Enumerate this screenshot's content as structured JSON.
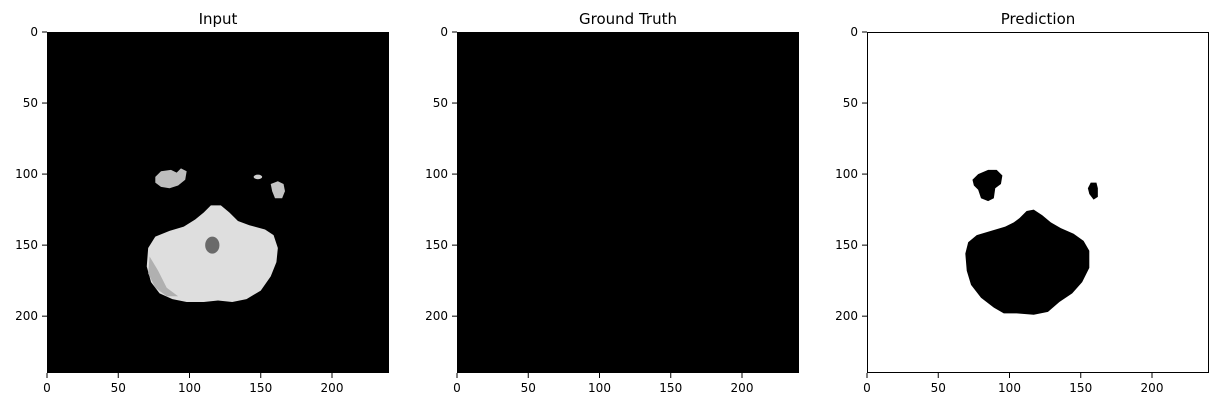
{
  "chart_data": [
    {
      "type": "heatmap",
      "title": "Input",
      "colormap": "gray",
      "background": "#000000",
      "xlim": [
        0,
        240
      ],
      "ylim": [
        240,
        0
      ],
      "xticks": [
        0,
        50,
        100,
        150,
        200
      ],
      "yticks": [
        0,
        50,
        100,
        150,
        200
      ],
      "regions": [
        {
          "label": "blob-left",
          "shape": "polygon",
          "fill": "#bdbdbd",
          "points": [
            [
              76,
              102
            ],
            [
              80,
              98
            ],
            [
              87,
              97
            ],
            [
              91,
              99
            ],
            [
              94,
              96
            ],
            [
              98,
              98
            ],
            [
              97,
              104
            ],
            [
              92,
              108
            ],
            [
              86,
              110
            ],
            [
              80,
              109
            ],
            [
              76,
              106
            ]
          ]
        },
        {
          "label": "blob-right-small",
          "shape": "ellipse",
          "fill": "#cfcfcf",
          "cx": 148,
          "cy": 102,
          "rx": 3,
          "ry": 1.6
        },
        {
          "label": "blob-right",
          "shape": "polygon",
          "fill": "#c4c4c4",
          "points": [
            [
              157,
              107
            ],
            [
              162,
              105
            ],
            [
              166,
              107
            ],
            [
              167,
              112
            ],
            [
              165,
              117
            ],
            [
              160,
              117
            ],
            [
              158,
              112
            ]
          ]
        },
        {
          "label": "brain-body",
          "shape": "polygon",
          "fill": "#dedede",
          "points": [
            [
              110,
              127
            ],
            [
              115,
              122
            ],
            [
              122,
              122
            ],
            [
              128,
              127
            ],
            [
              134,
              133
            ],
            [
              142,
              136
            ],
            [
              153,
              139
            ],
            [
              159,
              143
            ],
            [
              162,
              152
            ],
            [
              161,
              162
            ],
            [
              157,
              172
            ],
            [
              150,
              182
            ],
            [
              140,
              188
            ],
            [
              130,
              190
            ],
            [
              120,
              189
            ],
            [
              110,
              190
            ],
            [
              98,
              190
            ],
            [
              88,
              188
            ],
            [
              79,
              184
            ],
            [
              73,
              176
            ],
            [
              70,
              165
            ],
            [
              71,
              152
            ],
            [
              76,
              144
            ],
            [
              86,
              140
            ],
            [
              96,
              137
            ],
            [
              104,
              132
            ]
          ]
        },
        {
          "label": "brain-shade",
          "shape": "polygon",
          "fill": "#b0b0b0",
          "points": [
            [
              72,
              158
            ],
            [
              78,
              168
            ],
            [
              84,
              180
            ],
            [
              92,
              186
            ],
            [
              84,
              186
            ],
            [
              76,
              180
            ],
            [
              71,
              170
            ]
          ]
        },
        {
          "label": "brain-hole",
          "shape": "ellipse",
          "fill": "#6a6a6a",
          "cx": 116,
          "cy": 150,
          "rx": 5,
          "ry": 6
        }
      ]
    },
    {
      "type": "heatmap",
      "title": "Ground Truth",
      "colormap": "gray",
      "background": "#000000",
      "xlim": [
        0,
        240
      ],
      "ylim": [
        240,
        0
      ],
      "xticks": [
        0,
        50,
        100,
        150,
        200
      ],
      "yticks": [
        0,
        50,
        100,
        150,
        200
      ],
      "regions": []
    },
    {
      "type": "heatmap",
      "title": "Prediction",
      "colormap": "gray",
      "background": "#ffffff",
      "xlim": [
        0,
        240
      ],
      "ylim": [
        240,
        0
      ],
      "xticks": [
        0,
        50,
        100,
        150,
        200
      ],
      "yticks": [
        0,
        50,
        100,
        150,
        200
      ],
      "regions": [
        {
          "label": "pred-blob-left",
          "shape": "polygon",
          "fill": "#000000",
          "points": [
            [
              74,
              104
            ],
            [
              78,
              100
            ],
            [
              85,
              97
            ],
            [
              91,
              97
            ],
            [
              95,
              101
            ],
            [
              94,
              107
            ],
            [
              90,
              110
            ],
            [
              89,
              117
            ],
            [
              85,
              119
            ],
            [
              80,
              117
            ],
            [
              78,
              111
            ],
            [
              75,
              108
            ]
          ]
        },
        {
          "label": "pred-blob-right",
          "shape": "polygon",
          "fill": "#000000",
          "points": [
            [
              155,
              110
            ],
            [
              157,
              106
            ],
            [
              161,
              106
            ],
            [
              162,
              110
            ],
            [
              162,
              116
            ],
            [
              159,
              118
            ],
            [
              156,
              114
            ]
          ]
        },
        {
          "label": "pred-body",
          "shape": "polygon",
          "fill": "#000000",
          "points": [
            [
              107,
              131
            ],
            [
              112,
              126
            ],
            [
              117,
              125
            ],
            [
              123,
              129
            ],
            [
              129,
              134
            ],
            [
              136,
              138
            ],
            [
              145,
              142
            ],
            [
              152,
              147
            ],
            [
              156,
              154
            ],
            [
              156,
              166
            ],
            [
              151,
              176
            ],
            [
              144,
              184
            ],
            [
              135,
              190
            ],
            [
              127,
              197
            ],
            [
              117,
              199
            ],
            [
              105,
              198
            ],
            [
              96,
              198
            ],
            [
              89,
              194
            ],
            [
              80,
              187
            ],
            [
              73,
              178
            ],
            [
              70,
              168
            ],
            [
              69,
              156
            ],
            [
              71,
              148
            ],
            [
              77,
              143
            ],
            [
              87,
              140
            ],
            [
              97,
              137
            ],
            [
              103,
              134
            ]
          ]
        }
      ]
    }
  ]
}
